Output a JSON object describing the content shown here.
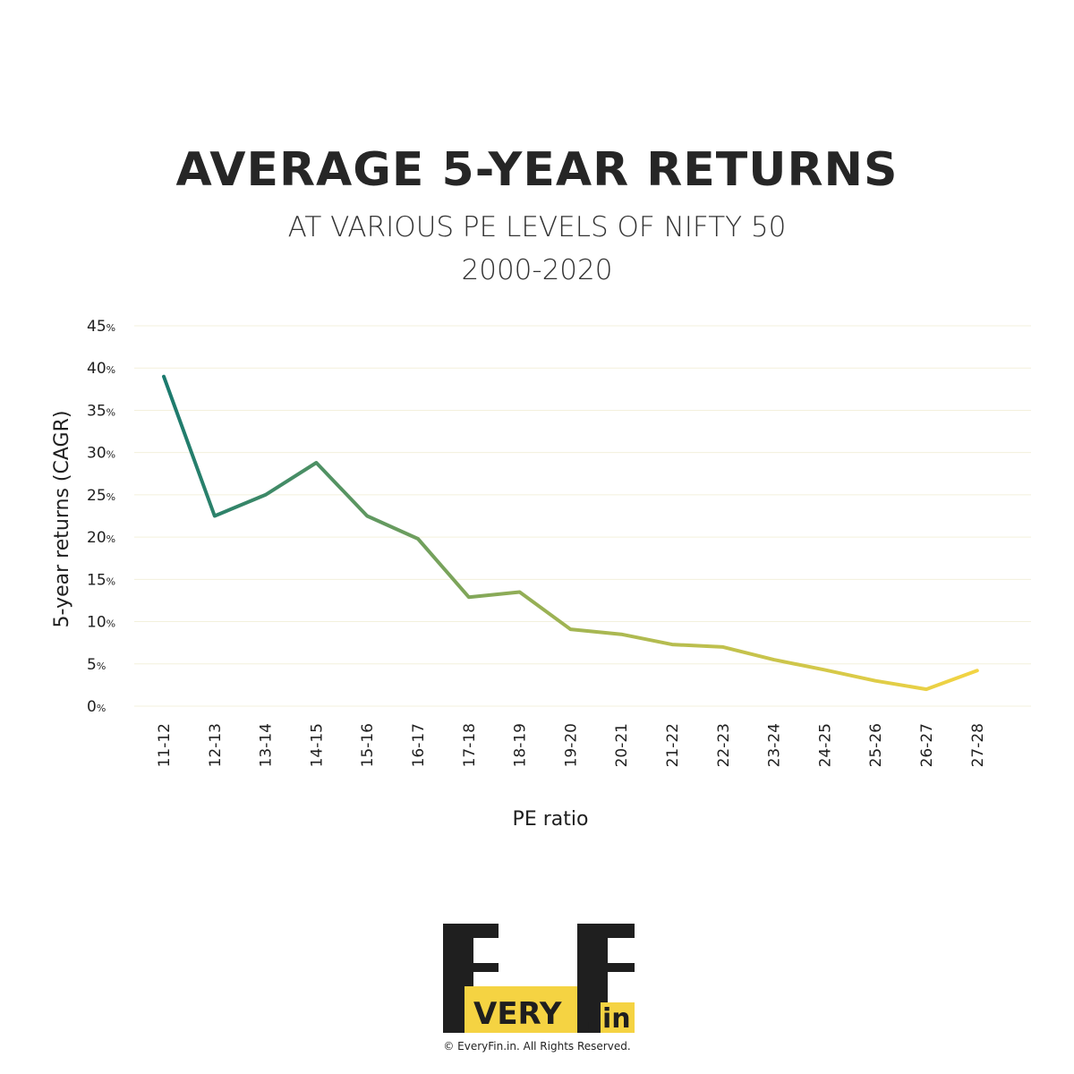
{
  "header": {
    "title": "AVERAGE 5-YEAR RETURNS",
    "subtitle": "AT VARIOUS PE LEVELS OF NIFTY 50",
    "period": "2000-2020"
  },
  "chart_data": {
    "type": "line",
    "title": "AVERAGE 5-YEAR RETURNS",
    "subtitle": "AT VARIOUS PE LEVELS OF NIFTY 50 2000-2020",
    "xlabel": "PE ratio",
    "ylabel": "5-year returns (CAGR)",
    "categories": [
      "11-12",
      "12-13",
      "13-14",
      "14-15",
      "15-16",
      "16-17",
      "17-18",
      "18-19",
      "19-20",
      "20-21",
      "21-22",
      "22-23",
      "23-24",
      "24-25",
      "25-26",
      "26-27",
      "27-28"
    ],
    "series": [
      {
        "values": [
          39,
          22.5,
          25,
          28.8,
          22.5,
          19.8,
          12.9,
          13.5,
          9.1,
          8.5,
          7.3,
          7.0,
          5.5,
          4.3,
          3.0,
          2.0,
          4.2
        ]
      }
    ],
    "y_ticks": [
      "45",
      "40",
      "35",
      "30",
      "25",
      "20",
      "15",
      "10",
      "5",
      "0"
    ],
    "y_tick_unit": "%",
    "ylim": [
      0,
      45
    ],
    "grid": true,
    "line_colors": {
      "start": "#1b7a6e",
      "mid": "#a2b553",
      "end": "#f3d443"
    }
  },
  "logo": {
    "big_letter_e": "E",
    "big_letter_f": "F",
    "very": "VERY",
    "dot": ".",
    "in": "in",
    "dark_color": "#1f1f1f",
    "yellow_color": "#f5d342"
  },
  "footer": {
    "copyright": "© EveryFin.in. All Rights Reserved."
  }
}
